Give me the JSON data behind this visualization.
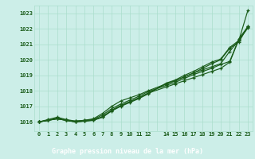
{
  "title": "Graphe pression niveau de la mer (hPa)",
  "bg_color": "#cceee8",
  "grid_color": "#aaddcc",
  "line_color": "#1a5c1a",
  "label_bg": "#2d6e2d",
  "label_fg": "#ffffff",
  "ylim": [
    1015.4,
    1023.5
  ],
  "xlim": [
    -0.5,
    23.5
  ],
  "xtick_labels": [
    "0",
    "1",
    "2",
    "3",
    "4",
    "5",
    "6",
    "7",
    "8",
    "9",
    "10",
    "11",
    "12",
    "",
    "14",
    "15",
    "16",
    "17",
    "18",
    "19",
    "20",
    "21",
    "22",
    "23"
  ],
  "yticks": [
    1016,
    1017,
    1018,
    1019,
    1020,
    1021,
    1022,
    1023
  ],
  "series1_x": [
    0,
    1,
    2,
    3,
    4,
    5,
    6,
    7,
    8,
    9,
    10,
    11,
    12,
    14,
    15,
    16,
    17,
    18,
    19,
    20,
    21,
    22,
    23
  ],
  "series1_y": [
    1016.0,
    1016.15,
    1016.3,
    1016.15,
    1016.05,
    1016.1,
    1016.2,
    1016.55,
    1017.0,
    1017.35,
    1017.55,
    1017.75,
    1018.0,
    1018.45,
    1018.65,
    1018.9,
    1019.15,
    1019.35,
    1019.55,
    1019.75,
    1020.55,
    1021.25,
    1022.1
  ],
  "series2_x": [
    0,
    1,
    2,
    3,
    4,
    5,
    6,
    7,
    8,
    9,
    10,
    11,
    12,
    14,
    15,
    16,
    17,
    18,
    19,
    20,
    21,
    22,
    23
  ],
  "series2_y": [
    1016.0,
    1016.1,
    1016.2,
    1016.1,
    1016.05,
    1016.1,
    1016.15,
    1016.45,
    1016.85,
    1017.15,
    1017.4,
    1017.65,
    1017.95,
    1018.35,
    1018.55,
    1018.8,
    1019.05,
    1019.25,
    1019.45,
    1019.7,
    1019.9,
    1021.35,
    1022.15
  ],
  "series3_x": [
    0,
    1,
    2,
    3,
    4,
    5,
    6,
    7,
    8,
    9,
    10,
    11,
    12,
    14,
    15,
    16,
    17,
    18,
    19,
    20,
    21,
    22,
    23
  ],
  "series3_y": [
    1016.0,
    1016.1,
    1016.2,
    1016.1,
    1016.0,
    1016.05,
    1016.1,
    1016.35,
    1016.75,
    1017.05,
    1017.3,
    1017.55,
    1017.85,
    1018.25,
    1018.45,
    1018.65,
    1018.85,
    1019.05,
    1019.25,
    1019.45,
    1019.85,
    1021.3,
    1022.05
  ],
  "series4_x": [
    0,
    1,
    2,
    3,
    4,
    5,
    6,
    7,
    8,
    9,
    10,
    11,
    12,
    14,
    15,
    16,
    17,
    18,
    19,
    20,
    21,
    22,
    23
  ],
  "series4_y": [
    1016.0,
    1016.1,
    1016.25,
    1016.1,
    1016.0,
    1016.05,
    1016.15,
    1016.3,
    1016.75,
    1017.05,
    1017.3,
    1017.55,
    1017.85,
    1018.45,
    1018.65,
    1018.9,
    1019.15,
    1019.45,
    1019.75,
    1020.0,
    1020.75,
    1021.15,
    1022.15
  ],
  "series5_x": [
    0,
    1,
    2,
    3,
    4,
    5,
    6,
    7,
    8,
    9,
    10,
    11,
    12,
    14,
    15,
    16,
    17,
    18,
    19,
    20,
    21,
    22,
    23
  ],
  "series5_y": [
    1016.0,
    1016.1,
    1016.2,
    1016.1,
    1016.0,
    1016.05,
    1016.1,
    1016.3,
    1016.7,
    1017.0,
    1017.25,
    1017.5,
    1017.8,
    1018.5,
    1018.7,
    1019.0,
    1019.25,
    1019.55,
    1019.85,
    1020.05,
    1020.8,
    1021.25,
    1023.2
  ]
}
